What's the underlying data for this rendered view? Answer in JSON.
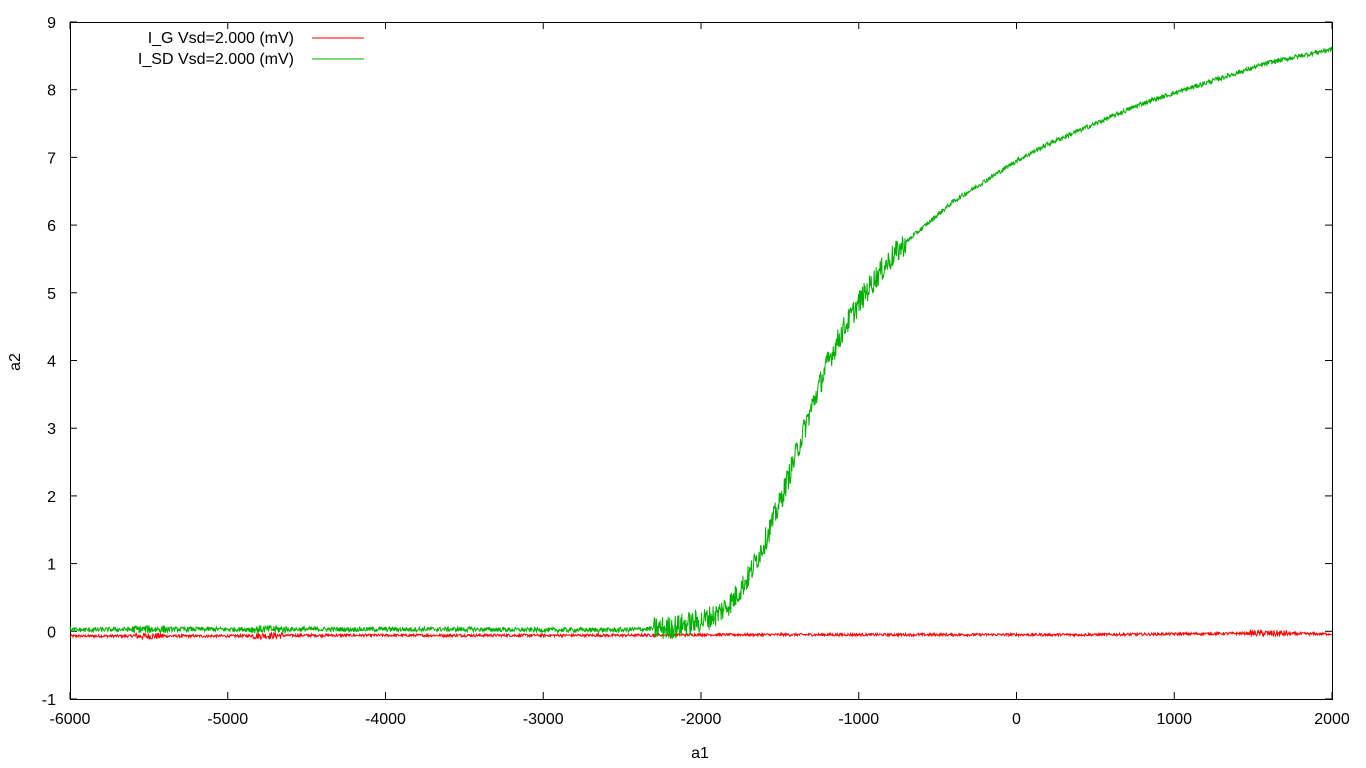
{
  "chart_data": {
    "type": "line",
    "title": "",
    "xlabel": "a1",
    "ylabel": "a2",
    "xlim": [
      -6000,
      2000
    ],
    "ylim": [
      -1,
      9
    ],
    "x_ticks": [
      -6000,
      -5000,
      -4000,
      -3000,
      -2000,
      -1000,
      0,
      1000,
      2000
    ],
    "x_tick_labels": [
      "-6000",
      "-5000",
      "-4000",
      "-3000",
      "-2000",
      "-1000",
      "0",
      "1000",
      "2000"
    ],
    "y_ticks": [
      -1,
      0,
      1,
      2,
      3,
      4,
      5,
      6,
      7,
      8,
      9
    ],
    "y_tick_labels": [
      "-1",
      "0",
      "1",
      "2",
      "3",
      "4",
      "5",
      "6",
      "7",
      "8",
      "9"
    ],
    "grid": false,
    "legend_position": "top-left",
    "series": [
      {
        "name": "I_G Vsd=2.000 (mV)",
        "color": "#ff0000",
        "x": [
          -6000,
          -5500,
          -5000,
          -4500,
          -4000,
          -3500,
          -3000,
          -2500,
          -2000,
          -1500,
          -1000,
          -500,
          0,
          500,
          1000,
          1500,
          2000
        ],
        "y": [
          -0.07,
          -0.07,
          -0.07,
          -0.06,
          -0.06,
          -0.06,
          -0.06,
          -0.06,
          -0.05,
          -0.05,
          -0.05,
          -0.05,
          -0.05,
          -0.05,
          -0.04,
          -0.03,
          -0.04
        ]
      },
      {
        "name": "I_SD Vsd=2.000 (mV)",
        "color": "#00b000",
        "x": [
          -6000,
          -5500,
          -5000,
          -4500,
          -4000,
          -3500,
          -3000,
          -2500,
          -2200,
          -2000,
          -1900,
          -1800,
          -1700,
          -1600,
          -1500,
          -1400,
          -1300,
          -1200,
          -1100,
          -1000,
          -900,
          -800,
          -700,
          -600,
          -500,
          -400,
          -300,
          -200,
          -100,
          0,
          200,
          400,
          600,
          800,
          1000,
          1200,
          1400,
          1600,
          1800,
          2000
        ],
        "y": [
          0.02,
          0.03,
          0.03,
          0.03,
          0.03,
          0.03,
          0.02,
          0.02,
          0.05,
          0.15,
          0.25,
          0.45,
          0.8,
          1.3,
          1.9,
          2.6,
          3.3,
          3.95,
          4.45,
          4.85,
          5.2,
          5.5,
          5.75,
          5.95,
          6.15,
          6.35,
          6.5,
          6.65,
          6.8,
          6.95,
          7.2,
          7.4,
          7.6,
          7.8,
          7.95,
          8.1,
          8.25,
          8.4,
          8.5,
          8.6
        ]
      }
    ]
  }
}
